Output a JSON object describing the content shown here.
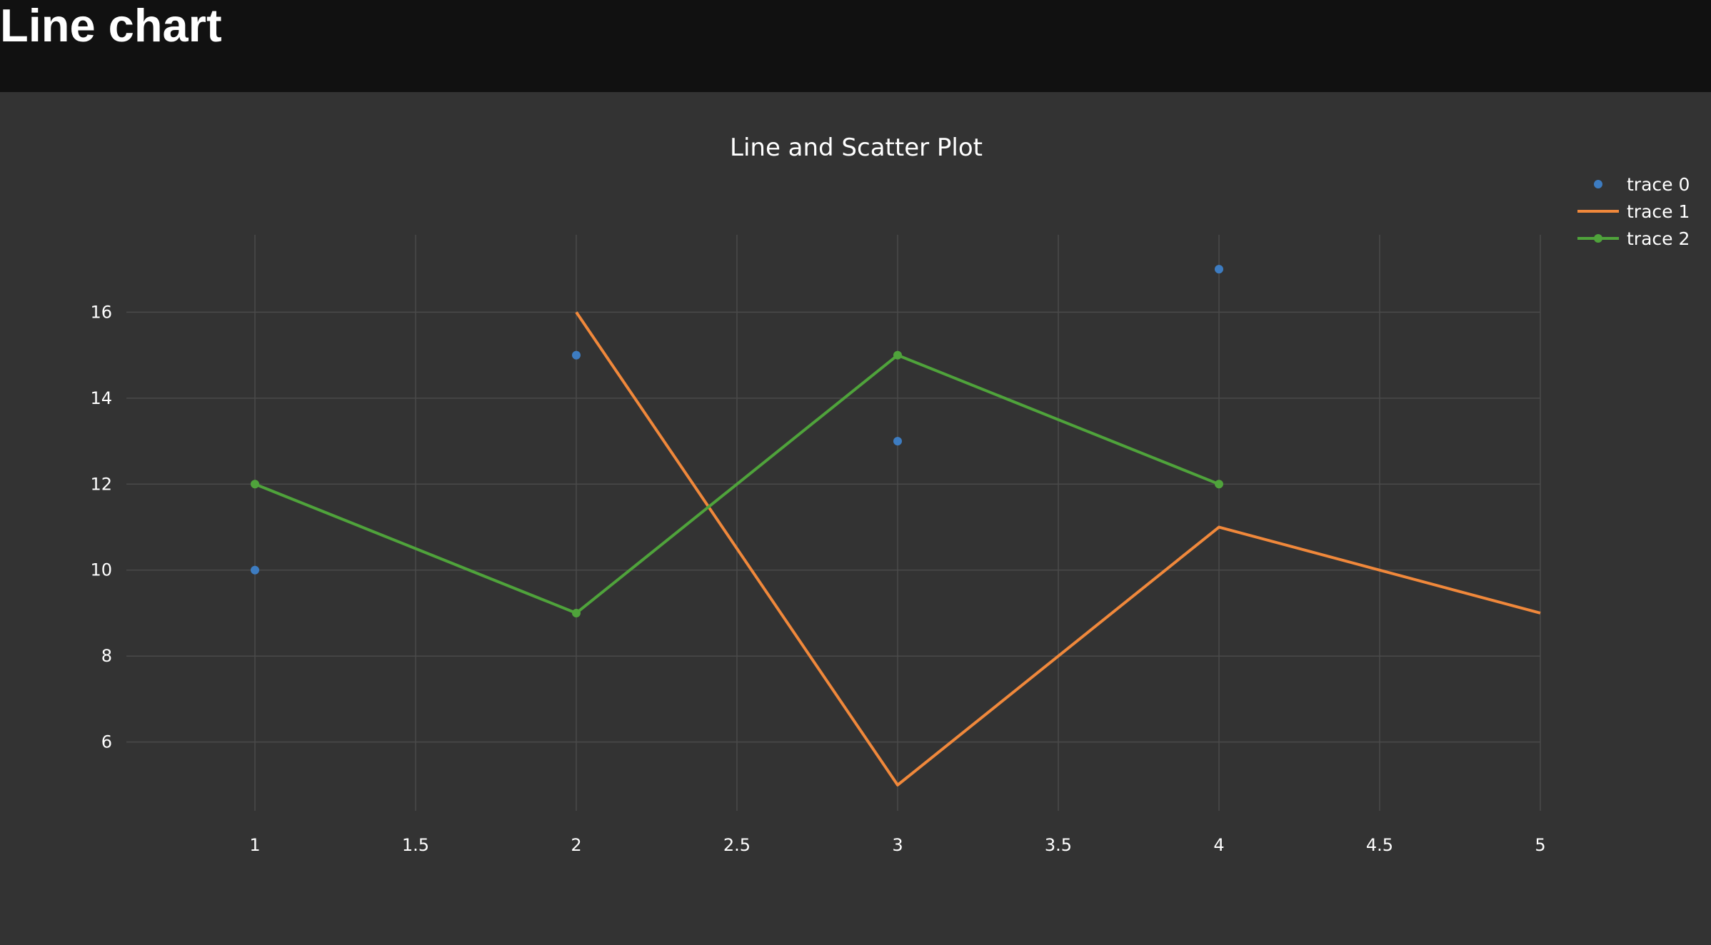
{
  "page": {
    "title": "Line chart"
  },
  "chart_data": {
    "type": "line",
    "title": "Line and Scatter Plot",
    "xlabel": "",
    "ylabel": "",
    "xlim": [
      0.8,
      5
    ],
    "ylim": [
      4.4,
      17.8
    ],
    "x_ticks": [
      1,
      1.5,
      2,
      2.5,
      3,
      3.5,
      4,
      4.5,
      5
    ],
    "x_tick_labels": [
      "1",
      "1.5",
      "2",
      "2.5",
      "3",
      "3.5",
      "4",
      "4.5",
      "5"
    ],
    "y_ticks": [
      6,
      8,
      10,
      12,
      14,
      16
    ],
    "y_tick_labels": [
      "6",
      "8",
      "10",
      "12",
      "14",
      "16"
    ],
    "grid": true,
    "legend_position": "top-right",
    "background_color": "#333333",
    "grid_color": "#4a4a4a",
    "text_color": "#ffffff",
    "series": [
      {
        "name": "trace 0",
        "mode": "markers",
        "color": "#3d7cc1",
        "x": [
          1,
          2,
          3,
          4
        ],
        "y": [
          10,
          15,
          13,
          17
        ]
      },
      {
        "name": "trace 1",
        "mode": "lines",
        "color": "#f0883b",
        "x": [
          2,
          3,
          4,
          5
        ],
        "y": [
          16,
          5,
          11,
          9
        ]
      },
      {
        "name": "trace 2",
        "mode": "lines+markers",
        "color": "#4fa33b",
        "x": [
          1,
          2,
          3,
          4
        ],
        "y": [
          12,
          9,
          15,
          12
        ]
      }
    ]
  }
}
